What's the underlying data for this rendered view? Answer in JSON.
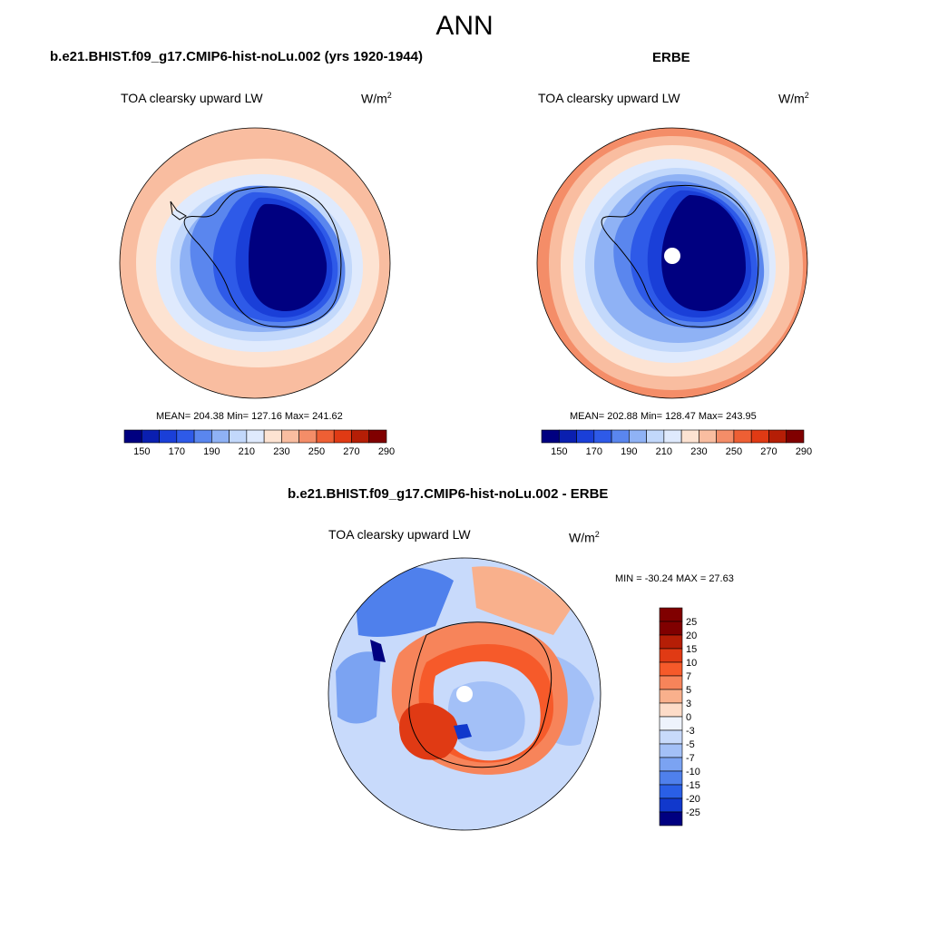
{
  "title": "ANN",
  "panels": {
    "model": {
      "title": "b.e21.BHIST.f09_g17.CMIP6-hist-noLu.002 (yrs 1920-1944)",
      "variable": "TOA clearsky upward LW",
      "units_base": "W/m",
      "units_exp": "2",
      "stats": "MEAN= 204.38  Min= 127.16  Max= 241.62",
      "colorbar_labels": [
        "150",
        "170",
        "190",
        "210",
        "230",
        "250",
        "270",
        "290"
      ]
    },
    "obs": {
      "title": "ERBE",
      "variable": "TOA clearsky upward LW",
      "units_base": "W/m",
      "units_exp": "2",
      "stats": "MEAN= 202.88  Min= 128.47  Max= 243.95",
      "colorbar_labels": [
        "150",
        "170",
        "190",
        "210",
        "230",
        "250",
        "270",
        "290"
      ]
    },
    "diff": {
      "title": "b.e21.BHIST.f09_g17.CMIP6-hist-noLu.002 - ERBE",
      "variable": "TOA clearsky upward LW",
      "units_base": "W/m",
      "units_exp": "2",
      "stats": "MIN = -30.24 MAX =  27.63",
      "colorbar_labels": [
        "25",
        "20",
        "15",
        "10",
        "7",
        "5",
        "3",
        "0",
        "-3",
        "-5",
        "-7",
        "-10",
        "-15",
        "-20",
        "-25"
      ]
    }
  },
  "colors": {
    "abs_palette": [
      "#000080",
      "#0a1fb0",
      "#1a3fd8",
      "#2e5ae8",
      "#5a86ee",
      "#8fb2f5",
      "#c2d8fb",
      "#dfeafd",
      "#fde3d2",
      "#f9bda0",
      "#f48d68",
      "#ee5f34",
      "#e03a14",
      "#b51e06",
      "#800000"
    ],
    "diff_palette": [
      "#800000",
      "#b51e06",
      "#e03a14",
      "#f65a2a",
      "#f7845a",
      "#f9b08c",
      "#fddcc8",
      "#eef3fc",
      "#c8dafb",
      "#a3c0f7",
      "#7ba3f2",
      "#4f80ec",
      "#2a5fe6",
      "#1138cc",
      "#000080"
    ],
    "land_edge": "#000000"
  }
}
